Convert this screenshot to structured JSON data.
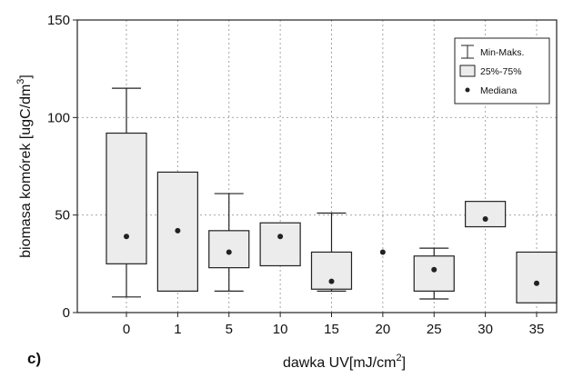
{
  "chart_data": {
    "type": "boxplot",
    "panel_label": "c)",
    "xlabel": "dawka UV[mJ/cm",
    "xlabel_sup": "2",
    "xlabel_suffix": "]",
    "ylabel": "biomasa komórek [ugC/dm",
    "ylabel_sup": "3",
    "ylabel_suffix": "]",
    "ylim": [
      0,
      150
    ],
    "yticks": [
      "0",
      "50",
      "100",
      "150"
    ],
    "grid": true,
    "legend_position": "top-right",
    "legend": [
      {
        "symbol": "whisker",
        "label": "Min-Maks."
      },
      {
        "symbol": "box",
        "label": "25%-75%"
      },
      {
        "symbol": "point",
        "label": "Mediana"
      }
    ],
    "categories": [
      "0",
      "1",
      "5",
      "10",
      "15",
      "20",
      "25",
      "30",
      "35"
    ],
    "boxes": [
      {
        "category": "0",
        "min": 8,
        "q1": 25,
        "median": 39,
        "q3": 92,
        "max": 115
      },
      {
        "category": "1",
        "min": 11,
        "q1": 11,
        "median": 42,
        "q3": 72,
        "max": 72
      },
      {
        "category": "5",
        "min": 11,
        "q1": 23,
        "median": 31,
        "q3": 42,
        "max": 61
      },
      {
        "category": "10",
        "min": 24,
        "q1": 24,
        "median": 39,
        "q3": 46,
        "max": 46
      },
      {
        "category": "15",
        "min": 11,
        "q1": 12,
        "median": 16,
        "q3": 31,
        "max": 51
      },
      {
        "category": "20",
        "min": 31,
        "q1": 31,
        "median": 31,
        "q3": 31,
        "max": 31
      },
      {
        "category": "25",
        "min": 7,
        "q1": 11,
        "median": 22,
        "q3": 29,
        "max": 33
      },
      {
        "category": "30",
        "min": 44,
        "q1": 44,
        "median": 48,
        "q3": 57,
        "max": 57
      },
      {
        "category": "35",
        "min": 5,
        "q1": 5,
        "median": 15,
        "q3": 31,
        "max": 31
      }
    ],
    "colors": {
      "box_fill": "#ececec",
      "stroke": "#222222",
      "grid": "#9a9a9a",
      "median": "#222222"
    }
  }
}
